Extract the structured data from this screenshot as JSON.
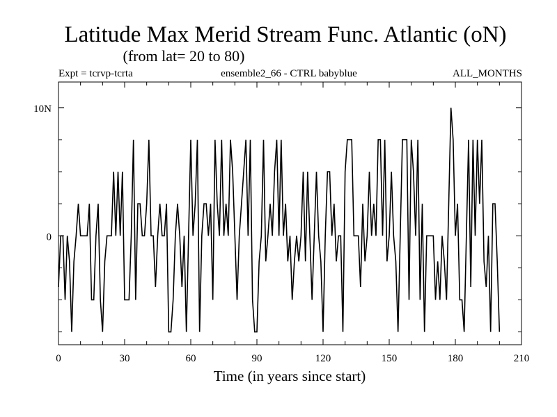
{
  "chart_data": {
    "type": "line",
    "title": "Latitude Max Merid Stream Func. Atlantic (oN)",
    "subtitle": "(from lat= 20 to 80)",
    "info_left": "Expt = tcrvp-tcrta",
    "info_center": "ensemble2_66 - CTRL babyblue",
    "info_right": "ALL_MONTHS",
    "xlabel": "Time (in years since start)",
    "ylabel": "",
    "xlim": [
      0,
      210
    ],
    "ylim": [
      -8.5,
      12
    ],
    "x_ticks": [
      0,
      30,
      60,
      90,
      120,
      150,
      180,
      210
    ],
    "x_tick_labels": [
      "0",
      "30",
      "60",
      "90",
      "120",
      "150",
      "180",
      "210"
    ],
    "y_ticks": [
      0,
      10
    ],
    "y_tick_labels": [
      "0",
      "10N"
    ],
    "x": [
      0,
      1,
      2,
      3,
      4,
      5,
      6,
      7,
      8,
      9,
      10,
      11,
      12,
      13,
      14,
      15,
      16,
      17,
      18,
      19,
      20,
      21,
      22,
      23,
      24,
      25,
      26,
      27,
      28,
      29,
      30,
      31,
      32,
      33,
      34,
      35,
      36,
      37,
      38,
      39,
      40,
      41,
      42,
      43,
      44,
      45,
      46,
      47,
      48,
      49,
      50,
      51,
      52,
      53,
      54,
      55,
      56,
      57,
      58,
      59,
      60,
      61,
      62,
      63,
      64,
      65,
      66,
      67,
      68,
      69,
      70,
      71,
      72,
      73,
      74,
      75,
      76,
      77,
      78,
      79,
      80,
      81,
      82,
      83,
      84,
      85,
      86,
      87,
      88,
      89,
      90,
      91,
      92,
      93,
      94,
      95,
      96,
      97,
      98,
      99,
      100,
      101,
      102,
      103,
      104,
      105,
      106,
      107,
      108,
      109,
      110,
      111,
      112,
      113,
      114,
      115,
      116,
      117,
      118,
      119,
      120,
      121,
      122,
      123,
      124,
      125,
      126,
      127,
      128,
      129,
      130,
      131,
      132,
      133,
      134,
      135,
      136,
      137,
      138,
      139,
      140,
      141,
      142,
      143,
      144,
      145,
      146,
      147,
      148,
      149,
      150,
      151,
      152,
      153,
      154,
      155,
      156,
      157,
      158,
      159,
      160,
      161,
      162,
      163,
      164,
      165,
      166,
      167,
      168,
      169,
      170,
      171,
      172,
      173,
      174,
      175,
      176,
      177,
      178,
      179,
      180,
      181,
      182,
      183,
      184,
      185,
      186,
      187,
      188,
      189,
      190,
      191,
      192,
      193,
      194,
      195,
      196,
      197,
      198,
      199,
      200
    ],
    "series": [
      {
        "name": "Latitude Max Merid Stream Func.",
        "color": "#000000",
        "values": [
          -4,
          0,
          0,
          -5,
          0,
          -2,
          -7.5,
          -2,
          0,
          2.5,
          0,
          0,
          0,
          0,
          2.5,
          -5,
          -5,
          0,
          2.5,
          -5,
          -7.5,
          -2,
          0,
          0,
          0,
          5,
          0,
          5,
          0,
          5,
          -5,
          -5,
          -5,
          0,
          7.5,
          -5,
          2.5,
          2.5,
          0,
          0,
          2.5,
          7.5,
          0,
          0,
          -4,
          0,
          2.5,
          0,
          0,
          2.5,
          -7.5,
          -7.5,
          -5,
          0,
          2.5,
          0,
          -4,
          0,
          -7.5,
          0,
          7.5,
          0,
          2.5,
          7.5,
          -7.5,
          0,
          2.5,
          2.5,
          0,
          2.5,
          -5,
          7.5,
          2.5,
          0,
          7.5,
          0,
          2.5,
          0,
          7.5,
          5,
          0,
          -5,
          0,
          2.5,
          5,
          7.5,
          0,
          7.5,
          -5,
          -7.5,
          -7.5,
          -2,
          0,
          7.5,
          -2,
          0,
          2.5,
          0,
          5,
          7.5,
          0,
          7.5,
          0,
          2.5,
          -2,
          0,
          -5,
          -2,
          0,
          -2,
          0,
          5,
          -2,
          5,
          0,
          -5,
          0,
          5,
          0,
          -2,
          -7.5,
          0,
          5,
          5,
          0,
          2.5,
          -2,
          0,
          0,
          -7.5,
          5,
          7.5,
          7.5,
          7.5,
          0,
          0,
          0,
          -4,
          2.5,
          -2,
          0,
          5,
          0,
          2.5,
          0,
          7.5,
          7.5,
          0,
          7.5,
          -2,
          0,
          5,
          0,
          -2,
          -7.5,
          0,
          7.5,
          7.5,
          7.5,
          -5,
          7.5,
          5,
          0,
          7.5,
          -5,
          2.5,
          -7.5,
          0,
          0,
          0,
          0,
          -5,
          -2,
          -5,
          0,
          -2,
          -5,
          2.5,
          10,
          7.5,
          0,
          2.5,
          -5,
          -5,
          -7.5,
          0,
          7.5,
          -4,
          7.5,
          0,
          7.5,
          2.5,
          7.5,
          -2,
          -4,
          0,
          -7.5,
          2.5,
          2.5,
          -2,
          -7.5
        ]
      }
    ]
  }
}
